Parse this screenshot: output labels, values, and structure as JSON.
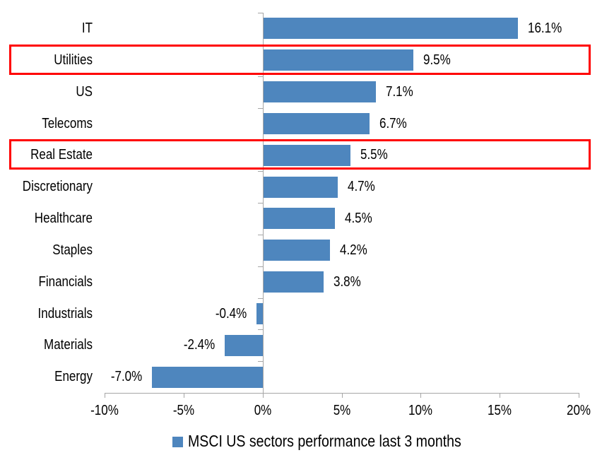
{
  "chart_data": {
    "type": "bar",
    "orientation": "horizontal",
    "categories": [
      "IT",
      "Utilities",
      "US",
      "Telecoms",
      "Real Estate",
      "Discretionary",
      "Healthcare",
      "Staples",
      "Financials",
      "Industrials",
      "Materials",
      "Energy"
    ],
    "values": [
      16.1,
      9.5,
      7.1,
      6.7,
      5.5,
      4.7,
      4.5,
      4.2,
      3.8,
      -0.4,
      -2.4,
      -7.0
    ],
    "data_labels": [
      "16.1%",
      "9.5%",
      "7.1%",
      "6.7%",
      "5.5%",
      "4.7%",
      "4.5%",
      "4.2%",
      "3.8%",
      "-0.4%",
      "-2.4%",
      "-7.0%"
    ],
    "highlighted_categories": [
      "Utilities",
      "Real Estate"
    ],
    "x_axis": {
      "min": -10,
      "max": 20,
      "tick_step": 5,
      "tick_labels": [
        "-10%",
        "-5%",
        "0%",
        "5%",
        "10%",
        "15%",
        "20%"
      ]
    },
    "legend": {
      "label": "MSCI US sectors performance last 3 months",
      "marker": "square",
      "position": "bottom"
    },
    "bar_color": "#4E86BE",
    "highlight_color": "#FF0000",
    "axis_color": "#A6A6A6",
    "text_color": "#000000",
    "grid": false
  }
}
